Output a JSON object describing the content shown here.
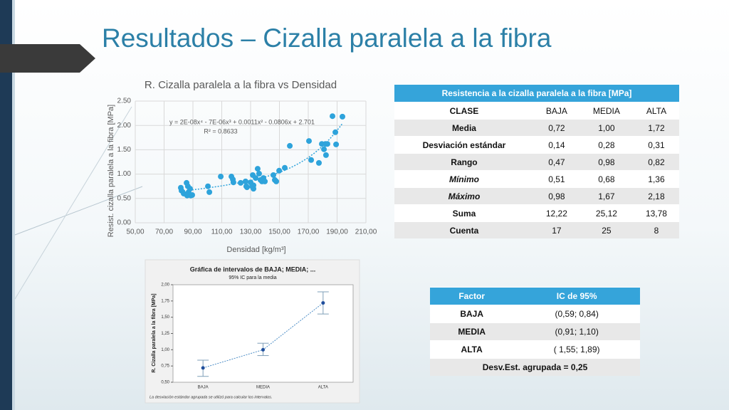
{
  "title": "Resultados – Cizalla paralela a la fibra",
  "chart_data": [
    {
      "type": "scatter",
      "title": "R. Cizalla paralela a la fibra vs Densidad",
      "x_label": "Densidad [kg/m³]",
      "y_label": "Resist. cizalla paralela a la fibra [MPa]",
      "annotations": [
        "y = 2E-08x⁴ - 7E-06x³ + 0.0011x² - 0.0806x + 2.701",
        "R² = 0.8633"
      ],
      "color": "#2ea3db",
      "trendline": {
        "degree": 4
      },
      "grid": true,
      "xlim": [
        50,
        210
      ],
      "xticks": [
        {
          "value": 50,
          "label": "50,00"
        },
        {
          "value": 70,
          "label": "70,00"
        },
        {
          "value": 90,
          "label": "90,00"
        },
        {
          "value": 110,
          "label": "110,00"
        },
        {
          "value": 130,
          "label": "130,00"
        },
        {
          "value": 150,
          "label": "150,00"
        },
        {
          "value": 170,
          "label": "170,00"
        },
        {
          "value": 190,
          "label": "190,00"
        },
        {
          "value": 210,
          "label": "210,00"
        }
      ],
      "ylim": [
        0,
        2.5
      ],
      "yticks": [
        {
          "value": 0,
          "label": "0.00"
        },
        {
          "value": 0.5,
          "label": "0.50"
        },
        {
          "value": 1,
          "label": "1.00"
        },
        {
          "value": 1.5,
          "label": "1.50"
        },
        {
          "value": 2,
          "label": "2.00"
        },
        {
          "value": 2.5,
          "label": "2.50"
        }
      ],
      "x": [
        81.6,
        82.1,
        83.6,
        85.6,
        86.5,
        87.0,
        88.0,
        88.5,
        89.5,
        86.0,
        100.4,
        101.4,
        109.3,
        116.7,
        117.7,
        118.1,
        123.1,
        126.5,
        127.0,
        127.5,
        130.0,
        131.0,
        131.5,
        132.0,
        133.5,
        134.9,
        135.9,
        136.9,
        137.9,
        138.9,
        139.9,
        145.8,
        146.8,
        147.8,
        149.8,
        153.7,
        157.2,
        170.5,
        172.0,
        177.4,
        179.4,
        180.9,
        181.9,
        182.3,
        183.3,
        186.8,
        188.8,
        189.3,
        193.7,
        132.0
      ],
      "values": [
        0.72,
        0.66,
        0.6,
        0.82,
        0.75,
        0.63,
        0.7,
        0.56,
        0.57,
        0.56,
        0.75,
        0.63,
        0.95,
        0.95,
        0.89,
        0.83,
        0.82,
        0.85,
        0.75,
        0.73,
        0.83,
        0.75,
        0.98,
        0.7,
        0.92,
        1.11,
        1.01,
        0.88,
        0.85,
        0.92,
        0.85,
        0.98,
        0.88,
        0.85,
        1.07,
        1.13,
        1.58,
        1.68,
        1.29,
        1.23,
        1.62,
        1.51,
        1.62,
        1.39,
        1.62,
        2.19,
        1.86,
        1.61,
        2.18,
        0.77
      ]
    },
    {
      "type": "interval",
      "title": "Gráfica de intervalos de BAJA; MEDIA; ...",
      "subtitle": "95% IC para la media",
      "y_label": "R. Cizalla paralela a la fibra [MPa]",
      "footnote": "La desviación estándar agrupada se utilizó para calcular los intervalos.",
      "categories": [
        "BAJA",
        "MEDIA",
        "ALTA"
      ],
      "values": [
        0.72,
        1.0,
        1.72
      ],
      "error_low": [
        0.59,
        0.91,
        1.55
      ],
      "error_high": [
        0.84,
        1.1,
        1.89
      ],
      "ylim": [
        0.5,
        2.0
      ],
      "yticks": [
        {
          "value": 0.5,
          "label": "0,50"
        },
        {
          "value": 0.75,
          "label": "0,75"
        },
        {
          "value": 1,
          "label": "1,00"
        },
        {
          "value": 1.25,
          "label": "1,25"
        },
        {
          "value": 1.5,
          "label": "1,50"
        },
        {
          "value": 1.75,
          "label": "1,75"
        },
        {
          "value": 2,
          "label": "2,00"
        }
      ]
    }
  ],
  "table": {
    "title": "Resistencia a la cizalla paralela a la fibra [MPa]",
    "header": [
      "CLASE",
      "BAJA",
      "MEDIA",
      "ALTA"
    ],
    "rows": [
      [
        "Media",
        "0,72",
        "1,00",
        "1,72"
      ],
      [
        "Desviación estándar",
        "0,14",
        "0,28",
        "0,31"
      ],
      [
        "Rango",
        "0,47",
        "0,98",
        "0,82"
      ],
      [
        "Mínimo",
        "0,51",
        "0,68",
        "1,36"
      ],
      [
        "Máximo",
        "0,98",
        "1,67",
        "2,18"
      ],
      [
        "Suma",
        "12,22",
        "25,12",
        "13,78"
      ],
      [
        "Cuenta",
        "17",
        "25",
        "8"
      ]
    ]
  },
  "ic_table": {
    "header": [
      "Factor",
      "IC de 95%"
    ],
    "rows": [
      [
        "BAJA",
        "(0,59; 0,84)"
      ],
      [
        "MEDIA",
        "(0,91; 1,10)"
      ],
      [
        "ALTA",
        "( 1,55;  1,89)"
      ]
    ],
    "footer": "Desv.Est. agrupada = 0,25"
  }
}
